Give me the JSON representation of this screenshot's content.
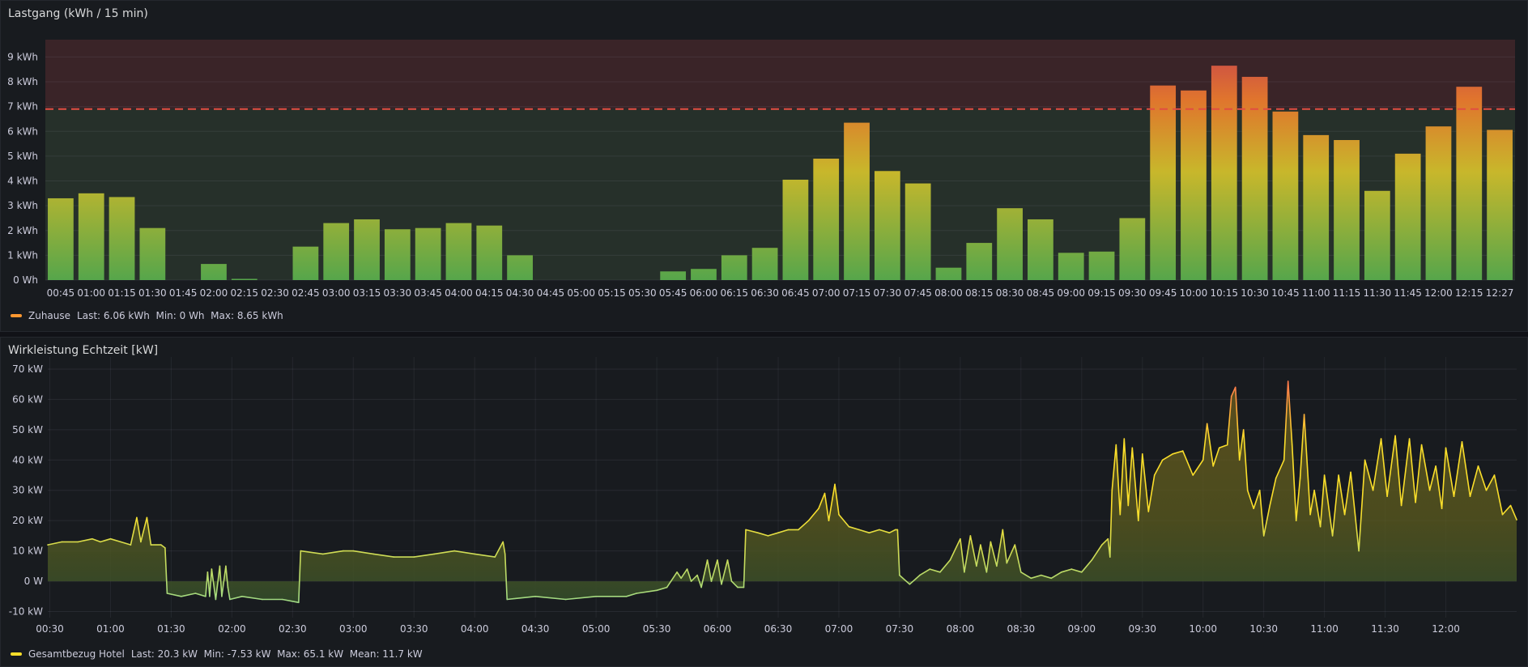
{
  "chart_data": [
    {
      "type": "bar",
      "title": "Lastgang (kWh / 15 min)",
      "unit": "kWh",
      "ylim": [
        0,
        9.7
      ],
      "ytick_labels": [
        "0 Wh",
        "1 kWh",
        "2 kWh",
        "3 kWh",
        "4 kWh",
        "5 kWh",
        "6 kWh",
        "7 kWh",
        "8 kWh",
        "9 kWh"
      ],
      "threshold": 6.9,
      "categories": [
        "00:45",
        "01:00",
        "01:15",
        "01:30",
        "01:45",
        "02:00",
        "02:15",
        "02:30",
        "02:45",
        "03:00",
        "03:15",
        "03:30",
        "03:45",
        "04:00",
        "04:15",
        "04:30",
        "04:45",
        "05:00",
        "05:15",
        "05:30",
        "05:45",
        "06:00",
        "06:15",
        "06:30",
        "06:45",
        "07:00",
        "07:15",
        "07:30",
        "07:45",
        "08:00",
        "08:15",
        "08:30",
        "08:45",
        "09:00",
        "09:15",
        "09:30",
        "09:45",
        "10:00",
        "10:15",
        "10:30",
        "10:45",
        "11:00",
        "11:15",
        "11:30",
        "11:45",
        "12:00",
        "12:15",
        "12:27"
      ],
      "series": [
        {
          "name": "Zuhause",
          "color": "#ff9830",
          "values": [
            3.3,
            3.5,
            3.35,
            2.1,
            0,
            0.65,
            0.05,
            0,
            1.35,
            2.3,
            2.45,
            2.05,
            2.1,
            2.3,
            2.2,
            1.0,
            0,
            0,
            0,
            0,
            0.35,
            0.45,
            1.0,
            1.3,
            4.05,
            4.9,
            6.35,
            4.4,
            3.9,
            0.5,
            1.5,
            2.9,
            2.45,
            1.1,
            1.15,
            2.5,
            7.85,
            7.65,
            8.65,
            8.2,
            6.8,
            5.85,
            5.65,
            3.6,
            5.1,
            6.2,
            7.8,
            6.06
          ]
        }
      ],
      "legend": {
        "name": "Zuhause",
        "stats": "Last: 6.06 kWh  Min: 0 Wh  Max: 8.65 kWh"
      },
      "grid": true,
      "colors": {
        "bar_low": "#56a64b",
        "bar_mid": "#c8b72b",
        "bar_high": "#e0752d",
        "bar_top": "#c4404f",
        "zone_green": "#26302a",
        "zone_red": "#3a2428",
        "threshold": "#e24d42"
      }
    },
    {
      "type": "area",
      "title": "Wirkleistung Echtzeit [kW]",
      "unit": "kW",
      "ylim": [
        -12,
        74
      ],
      "ytick_labels": [
        "-10 kW",
        "0 W",
        "10 kW",
        "20 kW",
        "30 kW",
        "40 kW",
        "50 kW",
        "60 kW",
        "70 kW"
      ],
      "xtick_labels": [
        "00:30",
        "01:00",
        "01:30",
        "02:00",
        "02:30",
        "03:00",
        "03:30",
        "04:00",
        "04:30",
        "05:00",
        "05:30",
        "06:00",
        "06:30",
        "07:00",
        "07:30",
        "08:00",
        "08:30",
        "09:00",
        "09:30",
        "10:00",
        "10:30",
        "11:00",
        "11:30",
        "12:00"
      ],
      "xlim": [
        "00:29",
        "12:35"
      ],
      "series": [
        {
          "name": "Gesamtbezug Hotel",
          "color": "#fade2a",
          "points": [
            [
              "00:29",
              12
            ],
            [
              "00:36",
              13
            ],
            [
              "00:44",
              13
            ],
            [
              "00:51",
              14
            ],
            [
              "00:55",
              13
            ],
            [
              "01:00",
              14
            ],
            [
              "01:05",
              13
            ],
            [
              "01:10",
              12
            ],
            [
              "01:13",
              21
            ],
            [
              "01:15",
              13
            ],
            [
              "01:18",
              21
            ],
            [
              "01:20",
              12
            ],
            [
              "01:25",
              12
            ],
            [
              "01:27",
              11
            ],
            [
              "01:28",
              -4
            ],
            [
              "01:35",
              -5
            ],
            [
              "01:42",
              -4
            ],
            [
              "01:47",
              -5
            ],
            [
              "01:48",
              3
            ],
            [
              "01:49",
              -5
            ],
            [
              "01:50",
              4
            ],
            [
              "01:52",
              -6
            ],
            [
              "01:54",
              5
            ],
            [
              "01:55",
              -5
            ],
            [
              "01:57",
              5
            ],
            [
              "01:58",
              -2
            ],
            [
              "01:59",
              -6
            ],
            [
              "02:05",
              -5
            ],
            [
              "02:15",
              -6
            ],
            [
              "02:25",
              -6
            ],
            [
              "02:33",
              -7
            ],
            [
              "02:34",
              10
            ],
            [
              "02:45",
              9
            ],
            [
              "02:55",
              10
            ],
            [
              "03:00",
              10
            ],
            [
              "03:10",
              9
            ],
            [
              "03:20",
              8
            ],
            [
              "03:30",
              8
            ],
            [
              "03:40",
              9
            ],
            [
              "03:50",
              10
            ],
            [
              "04:00",
              9
            ],
            [
              "04:10",
              8
            ],
            [
              "04:14",
              13
            ],
            [
              "04:15",
              9
            ],
            [
              "04:16",
              -6
            ],
            [
              "04:30",
              -5
            ],
            [
              "04:45",
              -6
            ],
            [
              "05:00",
              -5
            ],
            [
              "05:15",
              -5
            ],
            [
              "05:20",
              -4
            ],
            [
              "05:30",
              -3
            ],
            [
              "05:35",
              -2
            ],
            [
              "05:37",
              0
            ],
            [
              "05:40",
              3
            ],
            [
              "05:42",
              1
            ],
            [
              "05:45",
              4
            ],
            [
              "05:47",
              0
            ],
            [
              "05:50",
              2
            ],
            [
              "05:52",
              -2
            ],
            [
              "05:55",
              7
            ],
            [
              "05:57",
              0
            ],
            [
              "06:00",
              7
            ],
            [
              "06:02",
              -1
            ],
            [
              "06:05",
              7
            ],
            [
              "06:07",
              0
            ],
            [
              "06:10",
              -2
            ],
            [
              "06:13",
              -2
            ],
            [
              "06:14",
              17
            ],
            [
              "06:20",
              16
            ],
            [
              "06:25",
              15
            ],
            [
              "06:30",
              16
            ],
            [
              "06:35",
              17
            ],
            [
              "06:40",
              17
            ],
            [
              "06:45",
              20
            ],
            [
              "06:50",
              24
            ],
            [
              "06:53",
              29
            ],
            [
              "06:55",
              20
            ],
            [
              "06:58",
              32
            ],
            [
              "07:00",
              22
            ],
            [
              "07:05",
              18
            ],
            [
              "07:10",
              17
            ],
            [
              "07:15",
              16
            ],
            [
              "07:20",
              17
            ],
            [
              "07:25",
              16
            ],
            [
              "07:28",
              17
            ],
            [
              "07:29",
              17
            ],
            [
              "07:30",
              2
            ],
            [
              "07:35",
              -1
            ],
            [
              "07:40",
              2
            ],
            [
              "07:45",
              4
            ],
            [
              "07:50",
              3
            ],
            [
              "07:55",
              7
            ],
            [
              "08:00",
              14
            ],
            [
              "08:02",
              3
            ],
            [
              "08:05",
              15
            ],
            [
              "08:08",
              5
            ],
            [
              "08:10",
              12
            ],
            [
              "08:13",
              3
            ],
            [
              "08:15",
              13
            ],
            [
              "08:18",
              5
            ],
            [
              "08:21",
              17
            ],
            [
              "08:23",
              6
            ],
            [
              "08:27",
              12
            ],
            [
              "08:30",
              3
            ],
            [
              "08:35",
              1
            ],
            [
              "08:40",
              2
            ],
            [
              "08:45",
              1
            ],
            [
              "08:50",
              3
            ],
            [
              "08:55",
              4
            ],
            [
              "09:00",
              3
            ],
            [
              "09:05",
              7
            ],
            [
              "09:10",
              12
            ],
            [
              "09:13",
              14
            ],
            [
              "09:14",
              8
            ],
            [
              "09:15",
              30
            ],
            [
              "09:17",
              45
            ],
            [
              "09:19",
              22
            ],
            [
              "09:21",
              47
            ],
            [
              "09:23",
              25
            ],
            [
              "09:25",
              44
            ],
            [
              "09:28",
              20
            ],
            [
              "09:30",
              42
            ],
            [
              "09:33",
              23
            ],
            [
              "09:36",
              35
            ],
            [
              "09:40",
              40
            ],
            [
              "09:45",
              42
            ],
            [
              "09:50",
              43
            ],
            [
              "09:55",
              35
            ],
            [
              "10:00",
              40
            ],
            [
              "10:02",
              52
            ],
            [
              "10:05",
              38
            ],
            [
              "10:08",
              44
            ],
            [
              "10:12",
              45
            ],
            [
              "10:14",
              61
            ],
            [
              "10:16",
              64
            ],
            [
              "10:18",
              40
            ],
            [
              "10:20",
              50
            ],
            [
              "10:22",
              30
            ],
            [
              "10:25",
              24
            ],
            [
              "10:28",
              30
            ],
            [
              "10:30",
              15
            ],
            [
              "10:33",
              25
            ],
            [
              "10:36",
              34
            ],
            [
              "10:40",
              40
            ],
            [
              "10:42",
              66
            ],
            [
              "10:44",
              45
            ],
            [
              "10:46",
              20
            ],
            [
              "10:48",
              34
            ],
            [
              "10:50",
              55
            ],
            [
              "10:53",
              22
            ],
            [
              "10:55",
              30
            ],
            [
              "10:58",
              18
            ],
            [
              "11:00",
              35
            ],
            [
              "11:04",
              15
            ],
            [
              "11:07",
              35
            ],
            [
              "11:10",
              22
            ],
            [
              "11:13",
              36
            ],
            [
              "11:17",
              10
            ],
            [
              "11:20",
              40
            ],
            [
              "11:24",
              30
            ],
            [
              "11:28",
              47
            ],
            [
              "11:31",
              28
            ],
            [
              "11:35",
              48
            ],
            [
              "11:38",
              25
            ],
            [
              "11:42",
              47
            ],
            [
              "11:45",
              26
            ],
            [
              "11:48",
              45
            ],
            [
              "11:52",
              30
            ],
            [
              "11:55",
              38
            ],
            [
              "11:58",
              24
            ],
            [
              "12:00",
              44
            ],
            [
              "12:04",
              28
            ],
            [
              "12:08",
              46
            ],
            [
              "12:12",
              28
            ],
            [
              "12:16",
              38
            ],
            [
              "12:20",
              30
            ],
            [
              "12:24",
              35
            ],
            [
              "12:28",
              22
            ],
            [
              "12:32",
              25
            ],
            [
              "12:35",
              20.3
            ]
          ]
        }
      ],
      "legend": {
        "name": "Gesamtbezug Hotel",
        "stats": "Last: 20.3 kW  Min: -7.53 kW  Max: 65.1 kW  Mean: 11.7 kW"
      },
      "grid": true,
      "colors": {
        "line_low": "#96d98d",
        "line_mid": "#fade2a",
        "line_high": "#ff7a4a",
        "fill_pos": "#5b5b1e",
        "fill_neg": "#2e4a2c"
      }
    }
  ]
}
